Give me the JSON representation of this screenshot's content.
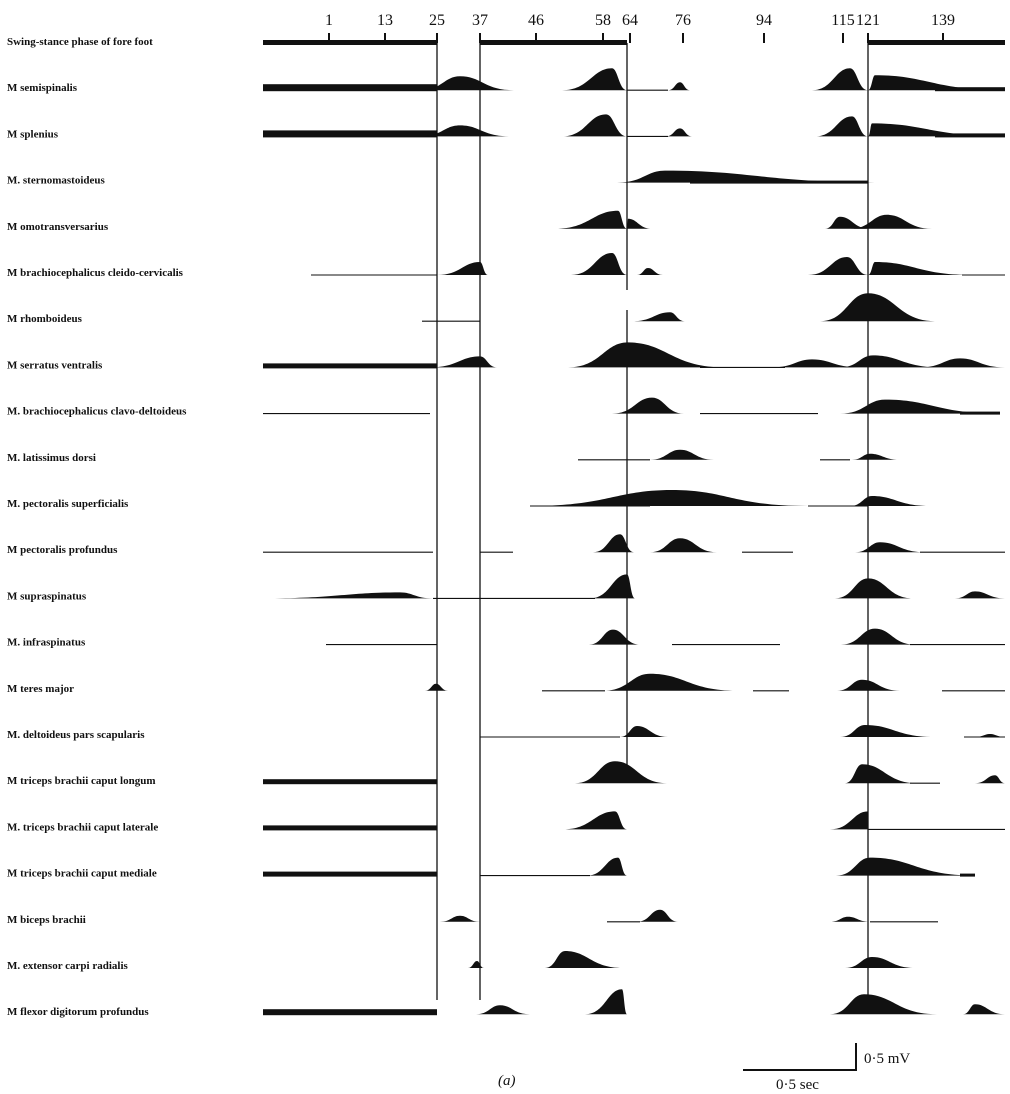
{
  "figure": {
    "caption": "(a)",
    "scale_bar_voltage": "0·5 mV",
    "scale_bar_time": "0·5 sec",
    "colors": {
      "ink": "#111111",
      "background": "#ffffff"
    }
  },
  "frame_ticks": [
    "1",
    "13",
    "25",
    "37",
    "46",
    "58",
    "64",
    "76",
    "94",
    "115",
    "121",
    "139"
  ],
  "rows": [
    {
      "label": "Swing-stance phase of fore foot"
    },
    {
      "label": "M  semispinalis"
    },
    {
      "label": "M  splenius"
    },
    {
      "label": "M. sternomastoideus"
    },
    {
      "label": "M  omotransversarius"
    },
    {
      "label": "M  brachiocephalicus cleido-cervicalis"
    },
    {
      "label": "M  rhomboideus"
    },
    {
      "label": "M  serratus ventralis"
    },
    {
      "label": "M. brachiocephalicus clavo-deltoideus"
    },
    {
      "label": "M. latissimus dorsi"
    },
    {
      "label": "M. pectoralis superficialis"
    },
    {
      "label": "M  pectoralis profundus"
    },
    {
      "label": "M  supraspinatus"
    },
    {
      "label": "M. infraspinatus"
    },
    {
      "label": "M  teres major"
    },
    {
      "label": "M. deltoideus pars scapularis"
    },
    {
      "label": "M  triceps brachii caput longum"
    },
    {
      "label": "M. triceps brachii caput laterale"
    },
    {
      "label": "M  triceps brachii caput mediale"
    },
    {
      "label": "M  biceps brachii"
    },
    {
      "label": "M. extensor carpi radialis"
    },
    {
      "label": "M  flexor digitorum profundus"
    }
  ]
}
